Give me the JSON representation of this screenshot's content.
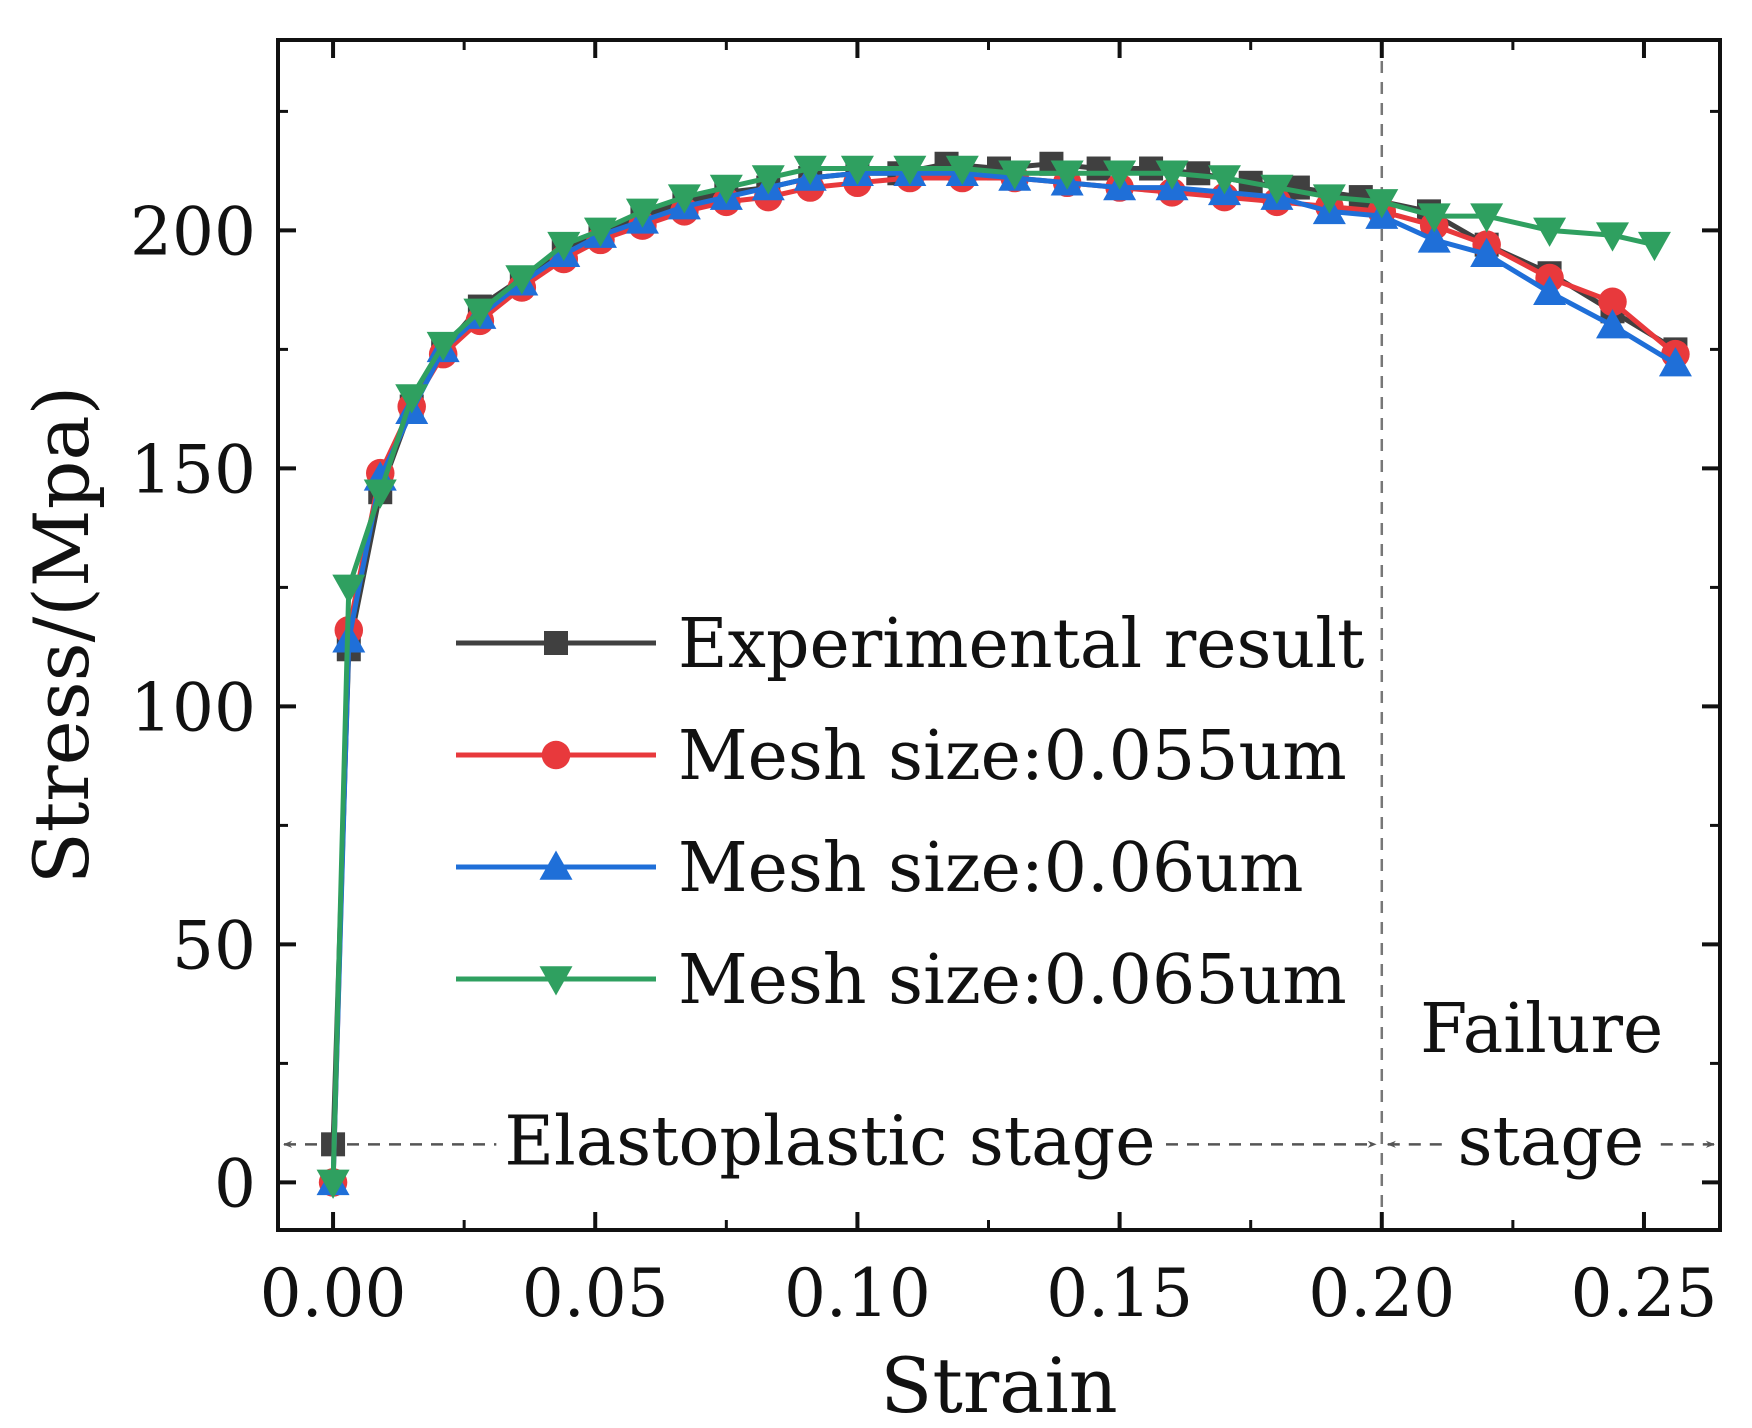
{
  "chart_data": {
    "type": "line",
    "xlabel": "Strain",
    "ylabel": "Stress/(Mpa)",
    "xlim": [
      -0.0105,
      0.2645
    ],
    "ylim": [
      -10,
      240
    ],
    "xticks": [
      0.0,
      0.05,
      0.1,
      0.15,
      0.2,
      0.25
    ],
    "xtick_labels": [
      "0.00",
      "0.05",
      "0.10",
      "0.15",
      "0.20",
      "0.25"
    ],
    "yticks": [
      0,
      50,
      100,
      150,
      200
    ],
    "ytick_labels": [
      "0",
      "50",
      "100",
      "150",
      "200"
    ],
    "grid": false,
    "legend_position": "center",
    "series": [
      {
        "name": "Experimental result",
        "color": "#404040",
        "marker": "square",
        "points": [
          [
            0.0,
            8
          ],
          [
            0.003,
            112
          ],
          [
            0.009,
            145
          ],
          [
            0.015,
            163
          ],
          [
            0.021,
            175
          ],
          [
            0.028,
            184
          ],
          [
            0.036,
            190
          ],
          [
            0.044,
            196
          ],
          [
            0.051,
            199
          ],
          [
            0.059,
            203
          ],
          [
            0.067,
            206
          ],
          [
            0.075,
            208
          ],
          [
            0.083,
            209
          ],
          [
            0.091,
            211
          ],
          [
            0.1,
            212
          ],
          [
            0.108,
            212
          ],
          [
            0.117,
            214
          ],
          [
            0.127,
            213
          ],
          [
            0.137,
            214
          ],
          [
            0.146,
            213
          ],
          [
            0.156,
            213
          ],
          [
            0.165,
            212
          ],
          [
            0.175,
            210
          ],
          [
            0.184,
            209
          ],
          [
            0.196,
            207
          ],
          [
            0.209,
            204
          ],
          [
            0.22,
            197
          ],
          [
            0.232,
            191
          ],
          [
            0.244,
            183
          ],
          [
            0.256,
            175
          ]
        ]
      },
      {
        "name": "Mesh size:0.055um",
        "color": "#e8393c",
        "marker": "circle",
        "points": [
          [
            0.0,
            0
          ],
          [
            0.003,
            116
          ],
          [
            0.009,
            149
          ],
          [
            0.015,
            163
          ],
          [
            0.021,
            174
          ],
          [
            0.028,
            181
          ],
          [
            0.036,
            188
          ],
          [
            0.044,
            194
          ],
          [
            0.051,
            198
          ],
          [
            0.059,
            201
          ],
          [
            0.067,
            204
          ],
          [
            0.075,
            206
          ],
          [
            0.083,
            207
          ],
          [
            0.091,
            209
          ],
          [
            0.1,
            210
          ],
          [
            0.11,
            211
          ],
          [
            0.12,
            211
          ],
          [
            0.13,
            211
          ],
          [
            0.14,
            210
          ],
          [
            0.15,
            209
          ],
          [
            0.16,
            208
          ],
          [
            0.17,
            207
          ],
          [
            0.18,
            206
          ],
          [
            0.19,
            205
          ],
          [
            0.2,
            204
          ],
          [
            0.21,
            201
          ],
          [
            0.22,
            197
          ],
          [
            0.232,
            190
          ],
          [
            0.244,
            185
          ],
          [
            0.256,
            174
          ]
        ]
      },
      {
        "name": "Mesh size:0.06um",
        "color": "#1f6fd8",
        "marker": "triangle-up",
        "points": [
          [
            0.0,
            0
          ],
          [
            0.003,
            114
          ],
          [
            0.009,
            148
          ],
          [
            0.015,
            162
          ],
          [
            0.021,
            175
          ],
          [
            0.028,
            182
          ],
          [
            0.036,
            189
          ],
          [
            0.044,
            195
          ],
          [
            0.051,
            199
          ],
          [
            0.059,
            202
          ],
          [
            0.067,
            205
          ],
          [
            0.075,
            207
          ],
          [
            0.083,
            209
          ],
          [
            0.091,
            211
          ],
          [
            0.1,
            212
          ],
          [
            0.11,
            212
          ],
          [
            0.12,
            212
          ],
          [
            0.13,
            211
          ],
          [
            0.14,
            210
          ],
          [
            0.15,
            209
          ],
          [
            0.16,
            209
          ],
          [
            0.17,
            208
          ],
          [
            0.18,
            207
          ],
          [
            0.19,
            204
          ],
          [
            0.2,
            203
          ],
          [
            0.21,
            198
          ],
          [
            0.22,
            195
          ],
          [
            0.232,
            187
          ],
          [
            0.244,
            180
          ],
          [
            0.256,
            172
          ]
        ]
      },
      {
        "name": "Mesh size:0.065um",
        "color": "#2fa060",
        "marker": "triangle-down",
        "points": [
          [
            0.0,
            0
          ],
          [
            0.003,
            125
          ],
          [
            0.009,
            145
          ],
          [
            0.015,
            165
          ],
          [
            0.021,
            176
          ],
          [
            0.028,
            183
          ],
          [
            0.036,
            190
          ],
          [
            0.044,
            197
          ],
          [
            0.051,
            200
          ],
          [
            0.059,
            204
          ],
          [
            0.067,
            207
          ],
          [
            0.075,
            209
          ],
          [
            0.083,
            211
          ],
          [
            0.091,
            213
          ],
          [
            0.1,
            213
          ],
          [
            0.11,
            213
          ],
          [
            0.12,
            213
          ],
          [
            0.13,
            212
          ],
          [
            0.14,
            212
          ],
          [
            0.15,
            212
          ],
          [
            0.16,
            212
          ],
          [
            0.17,
            211
          ],
          [
            0.18,
            209
          ],
          [
            0.19,
            207
          ],
          [
            0.2,
            206
          ],
          [
            0.21,
            203
          ],
          [
            0.22,
            203
          ],
          [
            0.232,
            200
          ],
          [
            0.244,
            199
          ],
          [
            0.252,
            197
          ]
        ]
      }
    ],
    "divider": {
      "x": 0.2
    },
    "annotations": [
      {
        "text": "Elastoplastic stage",
        "x_start": -0.0105,
        "x_end": 0.2,
        "y": 8
      },
      {
        "text": "Failure",
        "x": 0.2305,
        "y": 32
      },
      {
        "text": "stage",
        "x_start": 0.2,
        "x_end": 0.2645,
        "y": 8
      }
    ]
  }
}
